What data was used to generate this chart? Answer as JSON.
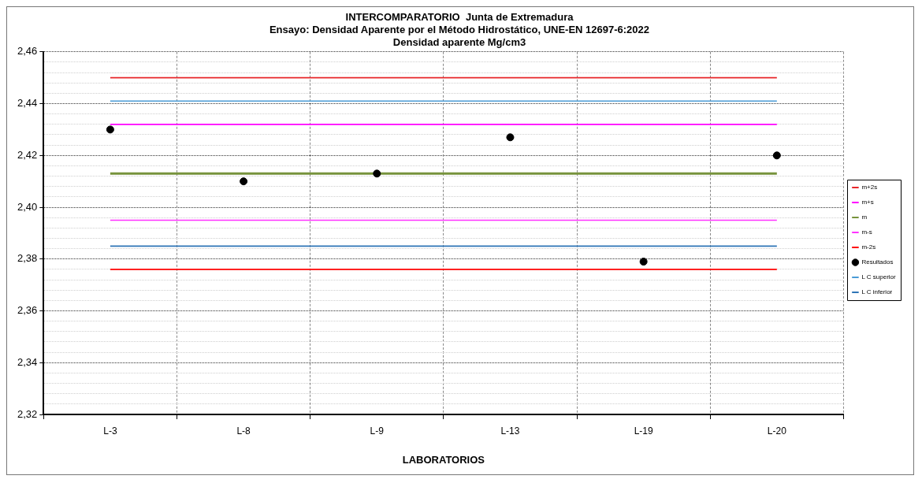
{
  "chart_data": {
    "type": "line",
    "title": "INTERCOMPARATORIO  Junta de Extremadura",
    "subtitle": "Ensayo: Densidad Aparente por el Método Hidrostático, UNE-EN 12697-6:2022\nDensidad aparente Mg/cm3",
    "xlabel": "LABORATORIOS",
    "categories": [
      "L-3",
      "L-8",
      "L-9",
      "L-13",
      "L-19",
      "L-20"
    ],
    "series": [
      {
        "name": "m+2s",
        "type": "line",
        "color": "#e8262a",
        "marker": "none",
        "line_style": "solid",
        "values": [
          2.45,
          2.45,
          2.45,
          2.45,
          2.45,
          2.45
        ]
      },
      {
        "name": "m+s",
        "type": "line",
        "color": "#ff00ff",
        "marker": "none",
        "line_style": "solid",
        "values": [
          2.432,
          2.432,
          2.432,
          2.432,
          2.432,
          2.432
        ]
      },
      {
        "name": "m",
        "type": "line",
        "color": "#77933c",
        "marker": "none",
        "line_style": "solid",
        "values": [
          2.413,
          2.413,
          2.413,
          2.413,
          2.413,
          2.413
        ]
      },
      {
        "name": "m-s",
        "type": "line",
        "color": "#ff33ff",
        "marker": "none",
        "line_style": "solid",
        "values": [
          2.395,
          2.395,
          2.395,
          2.395,
          2.395,
          2.395
        ]
      },
      {
        "name": "m-2s",
        "type": "line",
        "color": "#ff0000",
        "marker": "none",
        "line_style": "solid",
        "values": [
          2.376,
          2.376,
          2.376,
          2.376,
          2.376,
          2.376
        ]
      },
      {
        "name": "Resultados",
        "type": "scatter",
        "color": "#000000",
        "marker": "circle",
        "values": [
          2.43,
          2.41,
          2.413,
          2.427,
          2.379,
          2.42
        ]
      },
      {
        "name": "L C superior",
        "type": "line",
        "color": "#4a9bd6",
        "marker": "none",
        "line_style": "solid",
        "values": [
          2.441,
          2.441,
          2.441,
          2.441,
          2.441,
          2.441
        ]
      },
      {
        "name": "L C inferior",
        "type": "line",
        "color": "#2e75b6",
        "marker": "none",
        "line_style": "solid",
        "values": [
          2.385,
          2.385,
          2.385,
          2.385,
          2.385,
          2.385
        ]
      }
    ],
    "ylim": [
      2.32,
      2.46
    ],
    "yticks": [
      {
        "value": 2.32,
        "label": "2,32"
      },
      {
        "value": 2.324,
        "label": null
      },
      {
        "value": 2.328,
        "label": null
      },
      {
        "value": 2.332,
        "label": null
      },
      {
        "value": 2.336,
        "label": null
      },
      {
        "value": 2.34,
        "label": "2,34"
      },
      {
        "value": 2.344,
        "label": null
      },
      {
        "value": 2.348,
        "label": null
      },
      {
        "value": 2.352,
        "label": null
      },
      {
        "value": 2.356,
        "label": null
      },
      {
        "value": 2.36,
        "label": "2,36"
      },
      {
        "value": 2.364,
        "label": null
      },
      {
        "value": 2.368,
        "label": null
      },
      {
        "value": 2.372,
        "label": null
      },
      {
        "value": 2.376,
        "label": null
      },
      {
        "value": 2.38,
        "label": "2,38"
      },
      {
        "value": 2.384,
        "label": null
      },
      {
        "value": 2.388,
        "label": null
      },
      {
        "value": 2.392,
        "label": null
      },
      {
        "value": 2.396,
        "label": null
      },
      {
        "value": 2.4,
        "label": "2,40"
      },
      {
        "value": 2.404,
        "label": null
      },
      {
        "value": 2.408,
        "label": null
      },
      {
        "value": 2.412,
        "label": null
      },
      {
        "value": 2.416,
        "label": null
      },
      {
        "value": 2.42,
        "label": "2,42"
      },
      {
        "value": 2.424,
        "label": null
      },
      {
        "value": 2.428,
        "label": null
      },
      {
        "value": 2.432,
        "label": null
      },
      {
        "value": 2.436,
        "label": null
      },
      {
        "value": 2.44,
        "label": "2,44"
      },
      {
        "value": 2.444,
        "label": null
      },
      {
        "value": 2.448,
        "label": null
      },
      {
        "value": 2.452,
        "label": null
      },
      {
        "value": 2.456,
        "label": null
      },
      {
        "value": 2.46,
        "label": "2,46"
      }
    ],
    "grid": true,
    "legend": "right"
  }
}
